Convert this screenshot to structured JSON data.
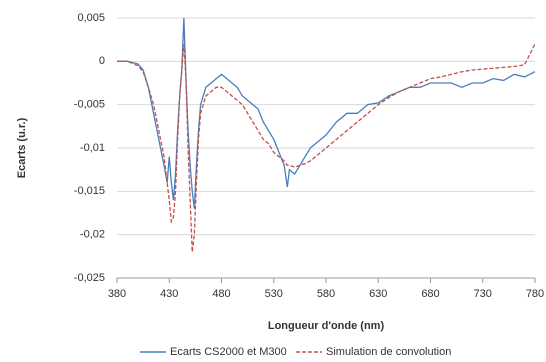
{
  "chart_data": {
    "type": "line",
    "xlabel": "Longueur d'onde (nm)",
    "ylabel": "Ecarts (u.r.)",
    "x": [
      380,
      390,
      400,
      405,
      410,
      415,
      420,
      425,
      428,
      430,
      432,
      434,
      436,
      438,
      440,
      442,
      444,
      446,
      448,
      450,
      452,
      454,
      456,
      458,
      460,
      465,
      470,
      475,
      480,
      485,
      490,
      495,
      500,
      505,
      510,
      515,
      520,
      525,
      530,
      535,
      540,
      543,
      545,
      550,
      555,
      560,
      565,
      570,
      575,
      580,
      590,
      600,
      610,
      620,
      630,
      640,
      650,
      660,
      670,
      680,
      690,
      700,
      710,
      720,
      730,
      740,
      750,
      760,
      770,
      780
    ],
    "series": [
      {
        "name": "Ecarts CS2000 et M300",
        "color": "#4a7ebb",
        "style": "solid",
        "values": [
          0,
          0,
          -0.0003,
          -0.001,
          -0.003,
          -0.006,
          -0.009,
          -0.012,
          -0.014,
          -0.011,
          -0.014,
          -0.016,
          -0.013,
          -0.008,
          -0.004,
          -0.001,
          0.005,
          -0.002,
          -0.008,
          -0.012,
          -0.015,
          -0.017,
          -0.012,
          -0.008,
          -0.005,
          -0.003,
          -0.0025,
          -0.002,
          -0.0015,
          -0.002,
          -0.0025,
          -0.003,
          -0.004,
          -0.0045,
          -0.005,
          -0.0055,
          -0.007,
          -0.008,
          -0.009,
          -0.0105,
          -0.012,
          -0.0145,
          -0.0125,
          -0.013,
          -0.012,
          -0.011,
          -0.01,
          -0.0095,
          -0.009,
          -0.0085,
          -0.007,
          -0.006,
          -0.006,
          -0.005,
          -0.0048,
          -0.004,
          -0.0035,
          -0.003,
          -0.003,
          -0.0025,
          -0.0025,
          -0.0025,
          -0.003,
          -0.0025,
          -0.0025,
          -0.002,
          -0.0022,
          -0.0015,
          -0.0018,
          -0.0012
        ]
      },
      {
        "name": "Simulation de convolution",
        "color": "#c0504d",
        "style": "dashed",
        "values": [
          0,
          0,
          -0.0005,
          -0.0012,
          -0.003,
          -0.005,
          -0.008,
          -0.011,
          -0.014,
          -0.016,
          -0.0185,
          -0.018,
          -0.015,
          -0.009,
          -0.004,
          -0.001,
          0.002,
          -0.002,
          -0.01,
          -0.016,
          -0.022,
          -0.02,
          -0.014,
          -0.009,
          -0.006,
          -0.004,
          -0.0035,
          -0.003,
          -0.003,
          -0.0035,
          -0.004,
          -0.0045,
          -0.005,
          -0.006,
          -0.007,
          -0.008,
          -0.009,
          -0.0095,
          -0.0105,
          -0.011,
          -0.0115,
          -0.012,
          -0.012,
          -0.0122,
          -0.012,
          -0.0118,
          -0.0115,
          -0.011,
          -0.0105,
          -0.01,
          -0.009,
          -0.008,
          -0.007,
          -0.006,
          -0.005,
          -0.0042,
          -0.0035,
          -0.003,
          -0.0025,
          -0.002,
          -0.0018,
          -0.0015,
          -0.0012,
          -0.001,
          -0.0009,
          -0.0008,
          -0.0007,
          -0.0006,
          -0.0004,
          0.002
        ]
      }
    ],
    "xlim": [
      380,
      780
    ],
    "xticks": [
      380,
      430,
      480,
      530,
      580,
      630,
      680,
      730,
      780
    ],
    "ylim": [
      -0.025,
      0.005
    ],
    "yticks": [
      {
        "value": -0.025,
        "label": "-0,025"
      },
      {
        "value": -0.02,
        "label": "-0,02"
      },
      {
        "value": -0.015,
        "label": "-0,015"
      },
      {
        "value": -0.01,
        "label": "-0,01"
      },
      {
        "value": -0.005,
        "label": "-0,005"
      },
      0,
      {
        "value": 0.005,
        "label": "0,005"
      }
    ],
    "grid": true,
    "legend": "bottom"
  }
}
